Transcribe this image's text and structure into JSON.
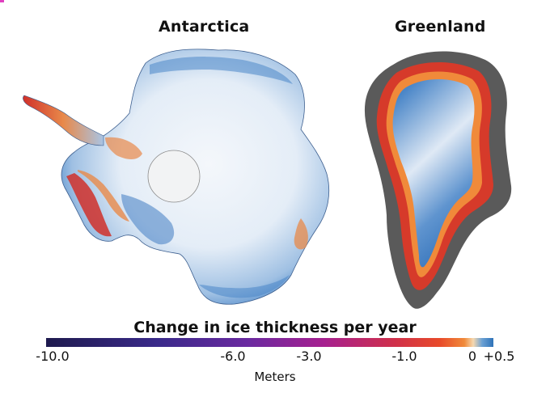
{
  "maps": {
    "antarctica": {
      "title": "Antarctica"
    },
    "greenland": {
      "title": "Greenland"
    }
  },
  "legend": {
    "title": "Change in ice thickness per year",
    "unit": "Meters",
    "scale_min": -10.0,
    "scale_max": 0.5,
    "ticks": [
      {
        "value": -10.0,
        "label": "-10.0"
      },
      {
        "value": -6.0,
        "label": "-6.0"
      },
      {
        "value": -3.0,
        "label": "-3.0"
      },
      {
        "value": -1.0,
        "label": "-1.0"
      },
      {
        "value": 0,
        "label": "0"
      },
      {
        "value": 0.5,
        "label": "+0.5"
      }
    ],
    "colors": [
      "#1e1a4e",
      "#3a2a8a",
      "#6a2aa0",
      "#a62090",
      "#d0304a",
      "#e84a2a",
      "#f08a3a",
      "#f5d8b0",
      "#2f73b8"
    ]
  },
  "palette": {
    "ice_light": "#eaf1f8",
    "ice_blue": "#4a86c8",
    "thinning_orange": "#e8894a",
    "thinning_red": "#d0302a",
    "rock_gray": "#5a5a5a"
  }
}
